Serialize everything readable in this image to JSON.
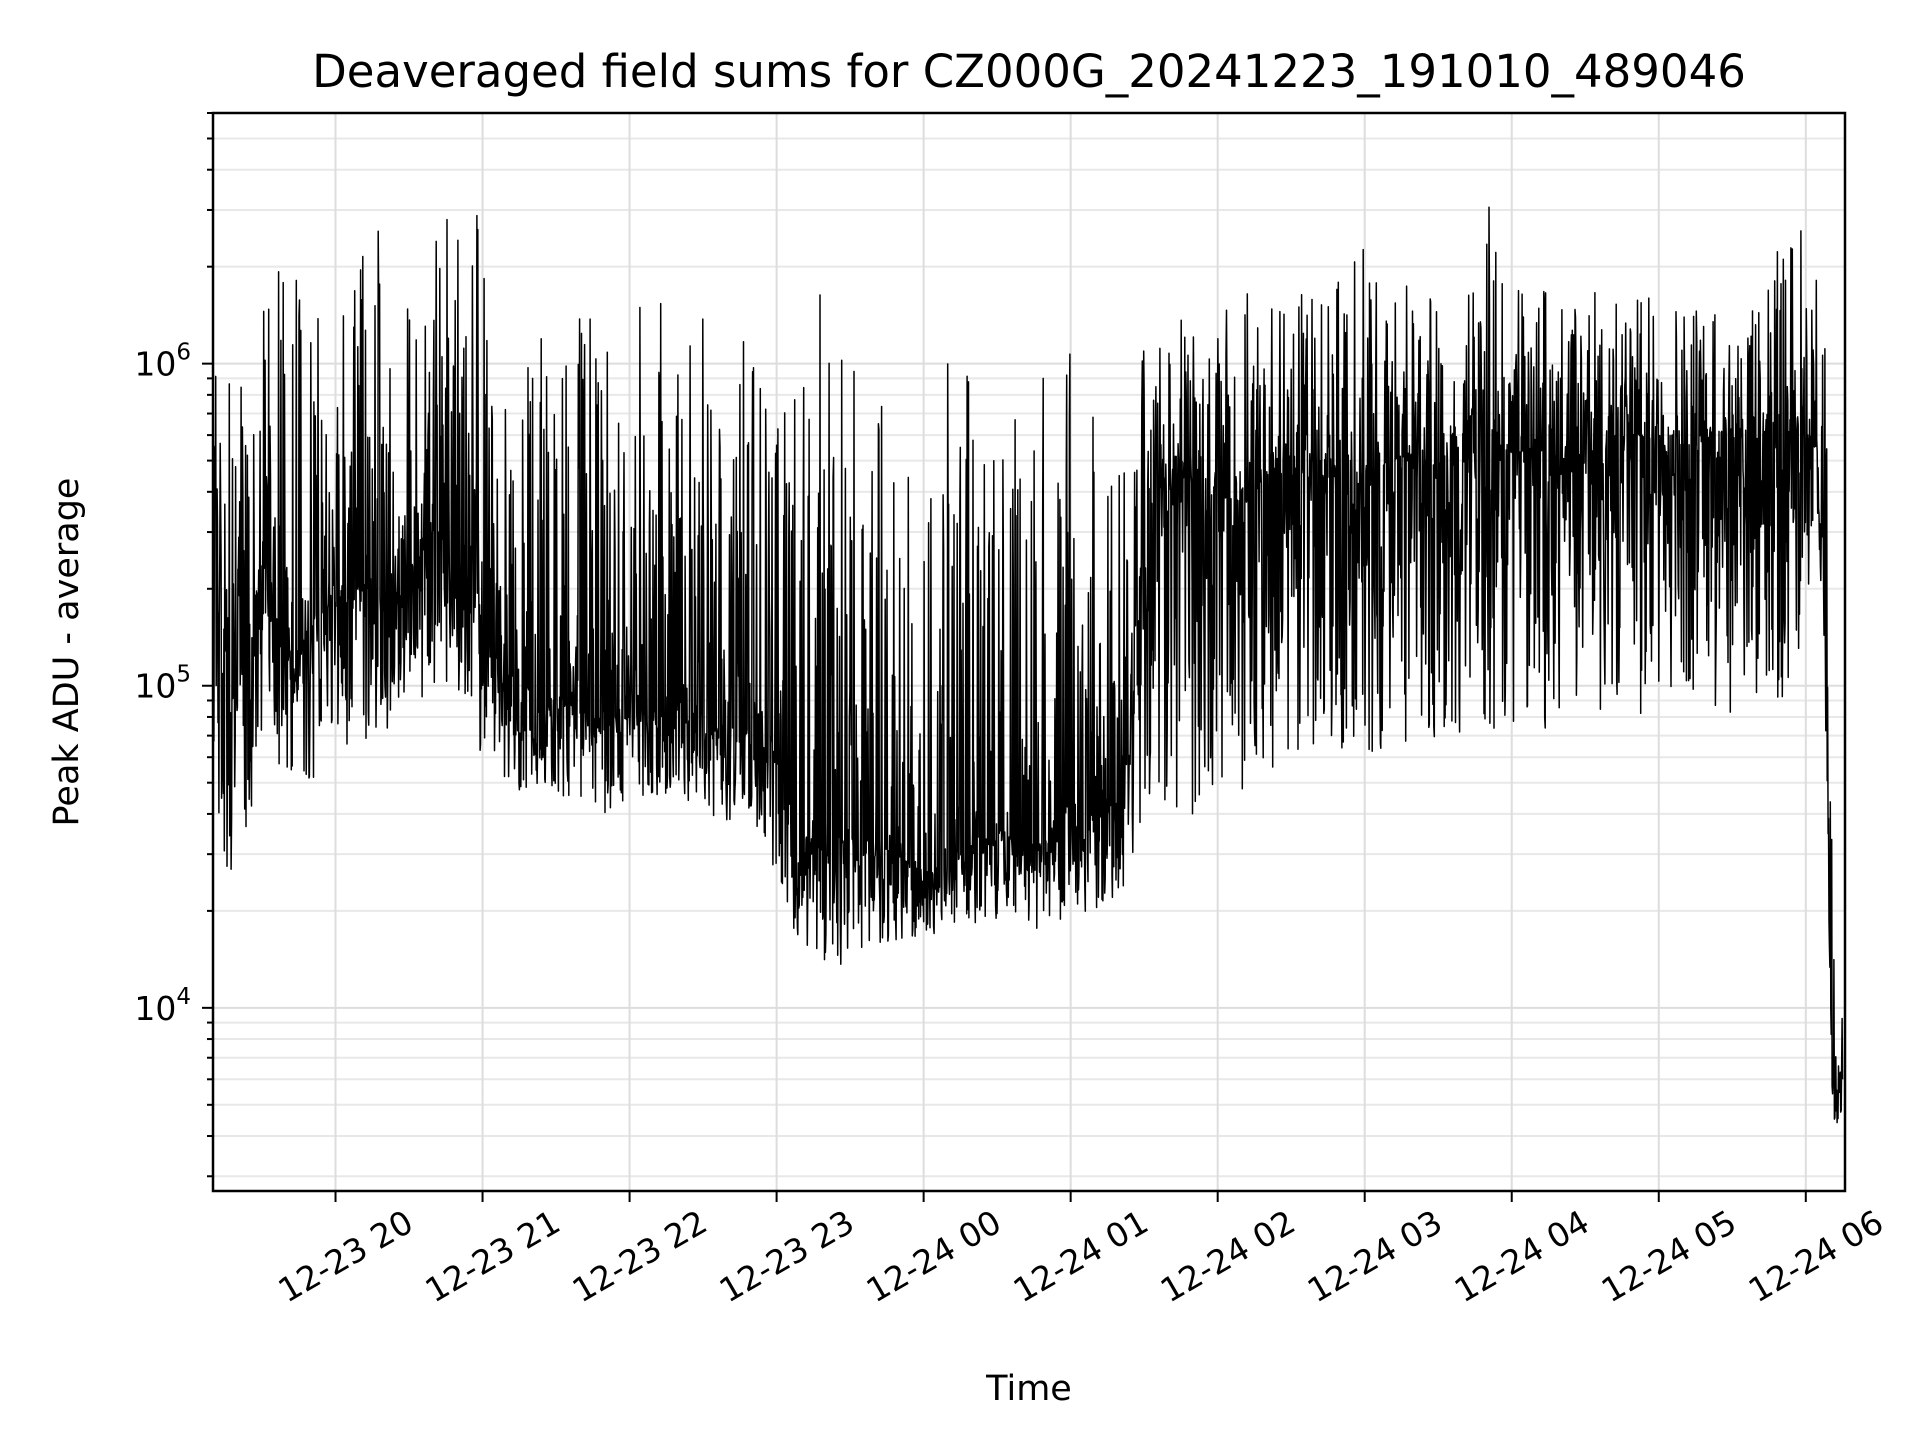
{
  "chart_data": {
    "type": "line",
    "title": "Deaveraged field sums for CZ000G_20241223_191010_489046",
    "xlabel": "Time",
    "ylabel": "Peak ADU - average",
    "yscale": "log",
    "grid": true,
    "xlim": [
      "2024-12-23 19:10",
      "2024-12-24 06:16"
    ],
    "ylim": [
      2700,
      6000000
    ],
    "x_ticks": [
      {
        "t": "2024-12-23 20:00",
        "label": "12-23 20"
      },
      {
        "t": "2024-12-23 21:00",
        "label": "12-23 21"
      },
      {
        "t": "2024-12-23 22:00",
        "label": "12-23 22"
      },
      {
        "t": "2024-12-23 23:00",
        "label": "12-23 23"
      },
      {
        "t": "2024-12-24 00:00",
        "label": "12-24 00"
      },
      {
        "t": "2024-12-24 01:00",
        "label": "12-24 01"
      },
      {
        "t": "2024-12-24 02:00",
        "label": "12-24 02"
      },
      {
        "t": "2024-12-24 03:00",
        "label": "12-24 03"
      },
      {
        "t": "2024-12-24 04:00",
        "label": "12-24 04"
      },
      {
        "t": "2024-12-24 05:00",
        "label": "12-24 05"
      },
      {
        "t": "2024-12-24 06:00",
        "label": "12-24 06"
      }
    ],
    "y_ticks": [
      {
        "value": 10000,
        "base": "10",
        "exp": "4"
      },
      {
        "value": 100000,
        "base": "10",
        "exp": "5"
      },
      {
        "value": 1000000,
        "base": "10",
        "exp": "6"
      }
    ],
    "series": [
      {
        "color": "#000000",
        "x": [
          "2024-12-23 19:10",
          "2024-12-23 19:20",
          "2024-12-23 19:30",
          "2024-12-23 19:40",
          "2024-12-23 19:50",
          "2024-12-23 20:00",
          "2024-12-23 20:10",
          "2024-12-23 20:20",
          "2024-12-23 20:30",
          "2024-12-23 20:40",
          "2024-12-23 20:50",
          "2024-12-23 21:00",
          "2024-12-23 21:10",
          "2024-12-23 21:20",
          "2024-12-23 21:30",
          "2024-12-23 21:40",
          "2024-12-23 21:50",
          "2024-12-23 22:00",
          "2024-12-23 22:10",
          "2024-12-23 22:20",
          "2024-12-23 22:30",
          "2024-12-23 22:40",
          "2024-12-23 22:50",
          "2024-12-23 23:00",
          "2024-12-23 23:10",
          "2024-12-23 23:20",
          "2024-12-23 23:30",
          "2024-12-23 23:40",
          "2024-12-23 23:50",
          "2024-12-24 00:00",
          "2024-12-24 00:10",
          "2024-12-24 00:20",
          "2024-12-24 00:30",
          "2024-12-24 00:40",
          "2024-12-24 00:50",
          "2024-12-24 01:00",
          "2024-12-24 01:10",
          "2024-12-24 01:20",
          "2024-12-24 01:30",
          "2024-12-24 01:40",
          "2024-12-24 01:50",
          "2024-12-24 02:00",
          "2024-12-24 02:10",
          "2024-12-24 02:20",
          "2024-12-24 02:30",
          "2024-12-24 02:40",
          "2024-12-24 02:50",
          "2024-12-24 03:00",
          "2024-12-24 03:10",
          "2024-12-24 03:20",
          "2024-12-24 03:30",
          "2024-12-24 03:40",
          "2024-12-24 03:50",
          "2024-12-24 04:00",
          "2024-12-24 04:10",
          "2024-12-24 04:20",
          "2024-12-24 04:30",
          "2024-12-24 04:40",
          "2024-12-24 04:50",
          "2024-12-24 05:00",
          "2024-12-24 05:10",
          "2024-12-24 05:20",
          "2024-12-24 05:30",
          "2024-12-24 05:40",
          "2024-12-24 05:50",
          "2024-12-24 06:00",
          "2024-12-24 06:05",
          "2024-12-24 06:08",
          "2024-12-24 06:10",
          "2024-12-24 06:12",
          "2024-12-24 06:15"
        ],
        "y": [
          200000,
          90000,
          250000,
          120000,
          150000,
          180000,
          200000,
          170000,
          220000,
          300000,
          250000,
          180000,
          110000,
          80000,
          90000,
          85000,
          75000,
          90000,
          80000,
          85000,
          70000,
          75000,
          70000,
          60000,
          35000,
          30000,
          35000,
          28000,
          30000,
          25000,
          28000,
          30000,
          35000,
          33000,
          32000,
          35000,
          40000,
          45000,
          300000,
          400000,
          450000,
          400000,
          350000,
          450000,
          500000,
          420000,
          480000,
          450000,
          500000,
          520000,
          480000,
          550000,
          500000,
          520000,
          550000,
          500000,
          520000,
          550000,
          600000,
          580000,
          560000,
          600000,
          620000,
          580000,
          650000,
          700000,
          500000,
          150000,
          10000,
          5000,
          6000
        ],
        "y_low": [
          30000,
          25000,
          60000,
          55000,
          50000,
          70000,
          60000,
          65000,
          80000,
          100000,
          80000,
          60000,
          50000,
          45000,
          45000,
          45000,
          40000,
          45000,
          45000,
          45000,
          40000,
          38000,
          40000,
          25000,
          15000,
          13000,
          14000,
          15000,
          16000,
          17000,
          17000,
          18000,
          19000,
          18000,
          17000,
          18000,
          20000,
          22000,
          35000,
          40000,
          40000,
          42000,
          45000,
          50000,
          55000,
          55000,
          60000,
          60000,
          65000,
          65000,
          70000,
          70000,
          70000,
          70000,
          72000,
          72000,
          75000,
          75000,
          78000,
          80000,
          80000,
          80000,
          82000,
          85000,
          85000,
          150000,
          300000,
          80000,
          6000,
          4000,
          4500
        ],
        "y_high": [
          1400000,
          1100000,
          1500000,
          2800000,
          1700000,
          1200000,
          4200000,
          2200000,
          1600000,
          2300000,
          4000000,
          3200000,
          1300000,
          1200000,
          1400000,
          1500000,
          1300000,
          1600000,
          1600000,
          1500000,
          1500000,
          1300000,
          1200000,
          1500000,
          900000,
          2100000,
          1000000,
          900000,
          1000000,
          1100000,
          1000000,
          1000000,
          1200000,
          1000000,
          1000000,
          1200000,
          1300000,
          1400000,
          1100000,
          1300000,
          1500000,
          1600000,
          1700000,
          1600000,
          1600000,
          1700000,
          1800000,
          2400000,
          1700000,
          1800000,
          1600000,
          1700000,
          3500000,
          1700000,
          2000000,
          1700000,
          1800000,
          1600000,
          1600000,
          1700000,
          1600000,
          1600000,
          1500000,
          1500000,
          2700000,
          2800000,
          2200000,
          1400000,
          60000,
          11000,
          10000
        ]
      }
    ]
  }
}
